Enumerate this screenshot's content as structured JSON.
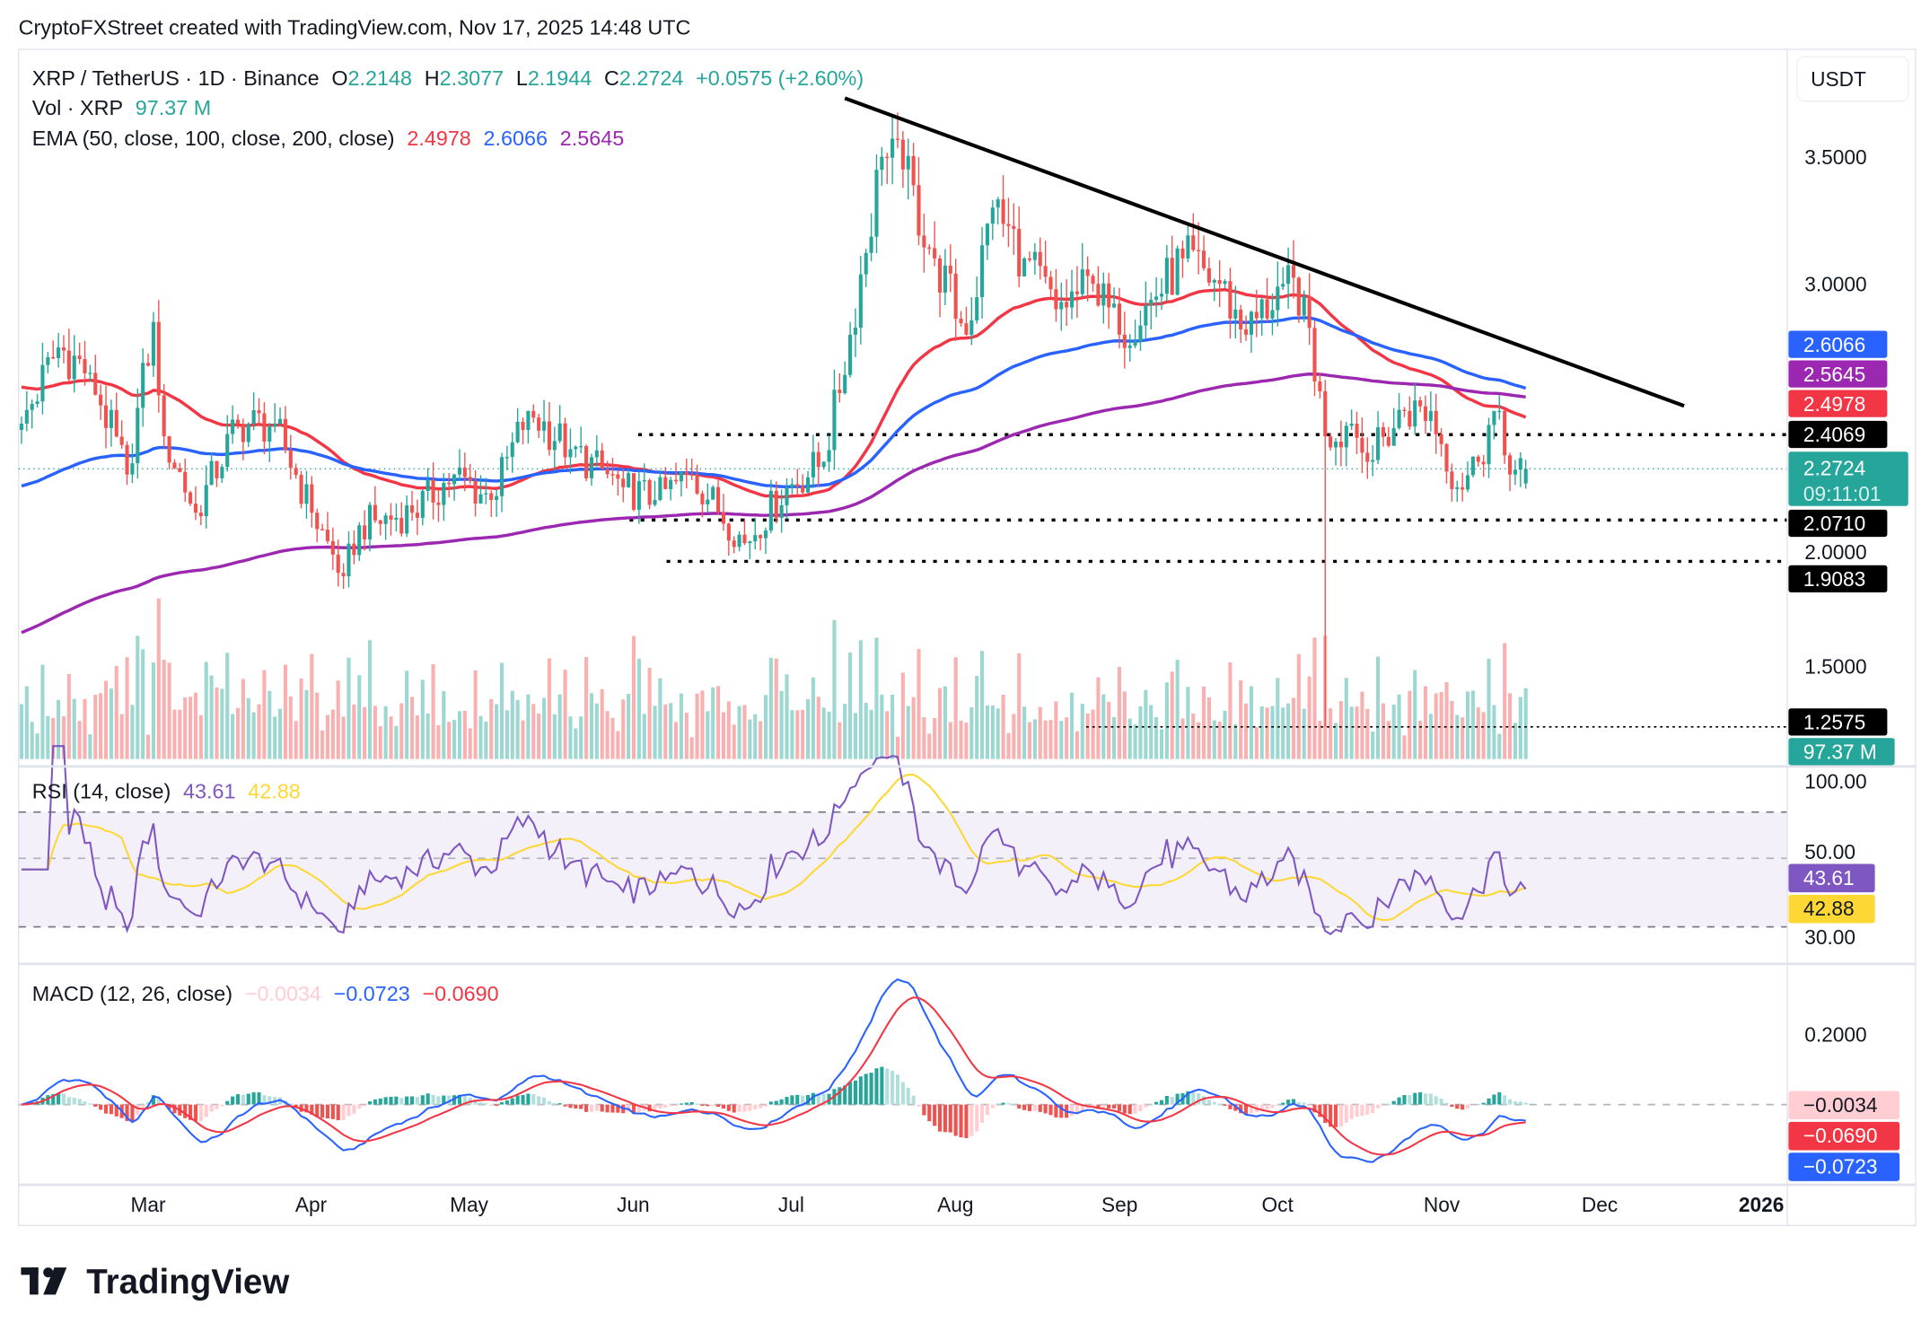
{
  "header": {
    "credit": "CryptoFXStreet created with TradingView.com, Nov 17, 2025 14:48 UTC"
  },
  "legend": {
    "symbol": "XRP / TetherUS · 1D · Binance",
    "o_label": "O",
    "o": "2.2148",
    "h_label": "H",
    "h": "2.3077",
    "l_label": "L",
    "l": "2.1944",
    "c_label": "C",
    "c": "2.2724",
    "change": "+0.0575 (+2.60%)",
    "vol_label": "Vol · XRP",
    "vol": "97.37 M",
    "ema_label": "EMA (50, close, 100, close, 200, close)",
    "ema50": "2.4978",
    "ema100": "2.6066",
    "ema200": "2.5645",
    "rsi_label": "RSI (14, close)",
    "rsi": "43.61",
    "rsi_ma": "42.88",
    "macd_label": "MACD (12, 26, close)",
    "macd_hist": "−0.0034",
    "macd": "−0.0723",
    "macd_signal": "−0.0690"
  },
  "currency_button": "USDT",
  "price_axis": {
    "ticks": [
      "3.5000",
      "3.0000",
      "2.0000",
      "1.5000"
    ],
    "badges": {
      "ema100": "2.6066",
      "ema200": "2.5645",
      "ema50": "2.4978",
      "level1": "2.4069",
      "last": "2.2724",
      "countdown": "09:11:01",
      "level2": "2.0710",
      "level3": "1.9083",
      "level4": "1.2575",
      "volume": "97.37 M"
    }
  },
  "rsi_axis": {
    "ticks": [
      "100.00",
      "50.00",
      "30.00"
    ],
    "rsi": "43.61",
    "rsi_ma": "42.88"
  },
  "macd_axis": {
    "ticks": [
      "0.2000"
    ],
    "hist": "−0.0034",
    "signal": "−0.0690",
    "macd": "−0.0723"
  },
  "time_axis": [
    "Mar",
    "Apr",
    "May",
    "Jun",
    "Jul",
    "Aug",
    "Sep",
    "Oct",
    "Nov",
    "Dec",
    "2026"
  ],
  "brand": "TradingView",
  "colors": {
    "up": "#26a69a",
    "down": "#ef5350",
    "ema50": "#f23645",
    "ema100": "#2962ff",
    "ema200": "#9c27b0",
    "rsi": "#7e57c2",
    "rsi_ma": "#fdd835",
    "macd": "#2962ff",
    "signal": "#f23645",
    "last_badge": "#26a69a"
  },
  "chart_data": {
    "type": "candlestick",
    "scale": "linear",
    "ylim": [
      1.25,
      3.75
    ],
    "x_range": [
      "2025-02-05",
      "2025-12-31"
    ],
    "grid": false,
    "close_path": [
      [
        "2025-02-05",
        2.45
      ],
      [
        "2025-02-12",
        2.75
      ],
      [
        "2025-02-18",
        2.65
      ],
      [
        "2025-02-25",
        2.25
      ],
      [
        "2025-03-02",
        2.85
      ],
      [
        "2025-03-04",
        2.4
      ],
      [
        "2025-03-10",
        2.1
      ],
      [
        "2025-03-18",
        2.45
      ],
      [
        "2025-03-25",
        2.45
      ],
      [
        "2025-04-01",
        2.1
      ],
      [
        "2025-04-07",
        1.85
      ],
      [
        "2025-04-10",
        2.05
      ],
      [
        "2025-04-20",
        2.1
      ],
      [
        "2025-04-28",
        2.25
      ],
      [
        "2025-05-05",
        2.15
      ],
      [
        "2025-05-12",
        2.5
      ],
      [
        "2025-05-20",
        2.35
      ],
      [
        "2025-05-30",
        2.2
      ],
      [
        "2025-06-05",
        2.15
      ],
      [
        "2025-06-12",
        2.25
      ],
      [
        "2025-06-22",
        1.98
      ],
      [
        "2025-06-30",
        2.2
      ],
      [
        "2025-07-07",
        2.3
      ],
      [
        "2025-07-12",
        2.8
      ],
      [
        "2025-07-18",
        3.5
      ],
      [
        "2025-07-22",
        3.45
      ],
      [
        "2025-07-28",
        3.1
      ],
      [
        "2025-08-03",
        2.8
      ],
      [
        "2025-08-08",
        3.3
      ],
      [
        "2025-08-14",
        3.1
      ],
      [
        "2025-08-20",
        2.9
      ],
      [
        "2025-08-27",
        3.0
      ],
      [
        "2025-09-01",
        2.8
      ],
      [
        "2025-09-08",
        2.95
      ],
      [
        "2025-09-13",
        3.1
      ],
      [
        "2025-09-20",
        3.0
      ],
      [
        "2025-09-25",
        2.8
      ],
      [
        "2025-10-02",
        3.0
      ],
      [
        "2025-10-06",
        2.95
      ],
      [
        "2025-10-10",
        2.4
      ],
      [
        "2025-10-15",
        2.45
      ],
      [
        "2025-10-18",
        2.3
      ],
      [
        "2025-10-25",
        2.5
      ],
      [
        "2025-10-30",
        2.5
      ],
      [
        "2025-11-04",
        2.2
      ],
      [
        "2025-11-08",
        2.3
      ],
      [
        "2025-11-11",
        2.5
      ],
      [
        "2025-11-14",
        2.25
      ],
      [
        "2025-11-17",
        2.2724
      ]
    ],
    "extreme_lows": [
      [
        "2025-10-10",
        1.2575
      ]
    ],
    "last": {
      "open": 2.2148,
      "high": 2.3077,
      "low": 2.1944,
      "close": 2.2724
    },
    "horizontal_levels": [
      2.4069,
      2.071,
      1.9083,
      1.2575
    ],
    "trendline": [
      [
        "2025-07-11",
        3.73
      ],
      [
        "2025-12-17",
        2.52
      ]
    ],
    "indicators": {
      "ema": {
        "periods": [
          50,
          100,
          200
        ],
        "last": [
          2.4978,
          2.6066,
          2.5645
        ]
      },
      "rsi": {
        "period": 14,
        "last": 43.61,
        "ma_last": 42.88,
        "bands": [
          70,
          50,
          30
        ]
      },
      "macd": {
        "fast": 12,
        "slow": 26,
        "last": -0.0723,
        "signal_last": -0.069,
        "hist_last": -0.0034
      },
      "volume_last": "97.37 M"
    }
  }
}
